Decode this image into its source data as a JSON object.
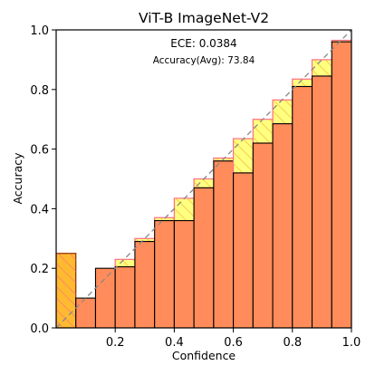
{
  "chart_data": {
    "type": "bar",
    "title": "ViT-B  ImageNet-V2",
    "xlabel": "Confidence",
    "ylabel": "Accuracy",
    "xlim": [
      0.0,
      1.0
    ],
    "ylim": [
      0.0,
      1.0
    ],
    "grid": false,
    "annotations": {
      "ece": "ECE: 0.0384",
      "accuracy": "Accuracy(Avg): 73.84"
    },
    "x_ticks": [
      {
        "value": 0.2,
        "label": "0.2"
      },
      {
        "value": 0.4,
        "label": "0.4"
      },
      {
        "value": 0.6,
        "label": "0.6"
      },
      {
        "value": 0.8,
        "label": "0.8"
      },
      {
        "value": 1.0,
        "label": "1.0"
      }
    ],
    "y_ticks": [
      {
        "value": 0.0,
        "label": "0.0"
      },
      {
        "value": 0.2,
        "label": "0.2"
      },
      {
        "value": 0.4,
        "label": "0.4"
      },
      {
        "value": 0.6,
        "label": "0.6"
      },
      {
        "value": 0.8,
        "label": "0.8"
      },
      {
        "value": 1.0,
        "label": "1.0"
      }
    ],
    "bin_width": 0.0667,
    "bins": [
      0.0333,
      0.1,
      0.1667,
      0.2333,
      0.3,
      0.3667,
      0.4333,
      0.5,
      0.5667,
      0.6333,
      0.7,
      0.7667,
      0.8333,
      0.9,
      0.9667
    ],
    "accuracy": [
      0.25,
      0.1,
      0.2,
      0.205,
      0.29,
      0.36,
      0.36,
      0.47,
      0.56,
      0.52,
      0.62,
      0.685,
      0.81,
      0.845,
      0.96
    ],
    "gap_top": [
      0.25,
      0.1,
      0.2,
      0.23,
      0.3,
      0.37,
      0.435,
      0.5,
      0.57,
      0.635,
      0.7,
      0.765,
      0.835,
      0.9,
      0.965
    ],
    "colors": {
      "accuracy_bar": "#ff8c5a",
      "gap_fill": "#ffff80",
      "gap_edge": "#ff6a8a",
      "gap_hatch": "#f0b030",
      "underconf_fill": "#ffba30",
      "diagonal": "#888888"
    }
  }
}
